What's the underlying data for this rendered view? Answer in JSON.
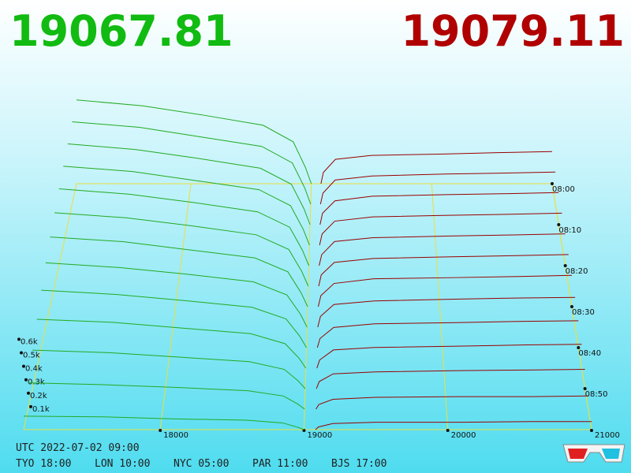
{
  "header": {
    "bid_price": "19067.81",
    "ask_price": "19079.11"
  },
  "footer": {
    "utc": "UTC 2022-07-02 09:00",
    "zones": [
      "TYO 18:00",
      "LON 10:00",
      "NYC 05:00",
      "PAR 11:00",
      "BJS 17:00"
    ]
  },
  "chart_data": {
    "type": "depth3d",
    "layers": [
      "08:00",
      null,
      "08:10",
      null,
      "08:20",
      null,
      "08:30",
      null,
      "08:40",
      null,
      "08:50",
      null,
      null
    ],
    "xlim": [
      17050,
      21000
    ],
    "xticks": [
      18000,
      19000,
      20000,
      21000
    ],
    "ylim": [
      0,
      900
    ],
    "yticks": [
      {
        "value": 100,
        "label": "0.1k"
      },
      {
        "value": 200,
        "label": "0.2k"
      },
      {
        "value": 300,
        "label": "0.3k"
      },
      {
        "value": 400,
        "label": "0.4k"
      },
      {
        "value": 500,
        "label": "0.5k"
      },
      {
        "value": 600,
        "label": "0.6k"
      }
    ],
    "bids": {
      "color": "#22aa22",
      "prices": [
        17050,
        17600,
        18100,
        18600,
        18850,
        18950,
        19000
      ],
      "values": [
        [
          860,
          800,
          705,
          600,
          430,
          170,
          0
        ],
        [
          820,
          765,
          670,
          575,
          410,
          165,
          0
        ],
        [
          780,
          725,
          640,
          545,
          390,
          155,
          0
        ],
        [
          740,
          690,
          605,
          520,
          370,
          150,
          0
        ],
        [
          700,
          650,
          575,
          490,
          350,
          140,
          0
        ],
        [
          650,
          605,
          535,
          455,
          325,
          130,
          0
        ],
        [
          600,
          560,
          490,
          420,
          300,
          120,
          0
        ],
        [
          540,
          500,
          445,
          380,
          270,
          110,
          0
        ],
        [
          470,
          435,
          385,
          330,
          235,
          95,
          0
        ],
        [
          390,
          365,
          320,
          275,
          195,
          80,
          0
        ],
        [
          300,
          280,
          245,
          210,
          150,
          60,
          0
        ],
        [
          200,
          185,
          165,
          140,
          100,
          40,
          0
        ],
        [
          100,
          95,
          80,
          70,
          50,
          20,
          0
        ]
      ]
    },
    "asks": {
      "color": "#990000",
      "prices": [
        19080,
        19100,
        19200,
        19500,
        20100,
        20600,
        21000
      ],
      "values": [
        [
          0,
          115,
          250,
          290,
          305,
          320,
          330
        ],
        [
          0,
          110,
          240,
          280,
          300,
          310,
          320
        ],
        [
          0,
          110,
          230,
          275,
          290,
          300,
          310
        ],
        [
          0,
          105,
          225,
          265,
          280,
          290,
          300
        ],
        [
          0,
          100,
          220,
          255,
          270,
          280,
          290
        ],
        [
          0,
          100,
          210,
          245,
          260,
          270,
          280
        ],
        [
          0,
          95,
          200,
          240,
          250,
          260,
          270
        ],
        [
          0,
          90,
          190,
          220,
          235,
          245,
          250
        ],
        [
          0,
          75,
          165,
          195,
          205,
          215,
          220
        ],
        [
          0,
          65,
          145,
          165,
          175,
          185,
          190
        ],
        [
          0,
          55,
          115,
          130,
          140,
          145,
          150
        ],
        [
          0,
          35,
          75,
          90,
          95,
          95,
          100
        ],
        [
          0,
          20,
          45,
          55,
          55,
          60,
          60
        ]
      ]
    }
  }
}
